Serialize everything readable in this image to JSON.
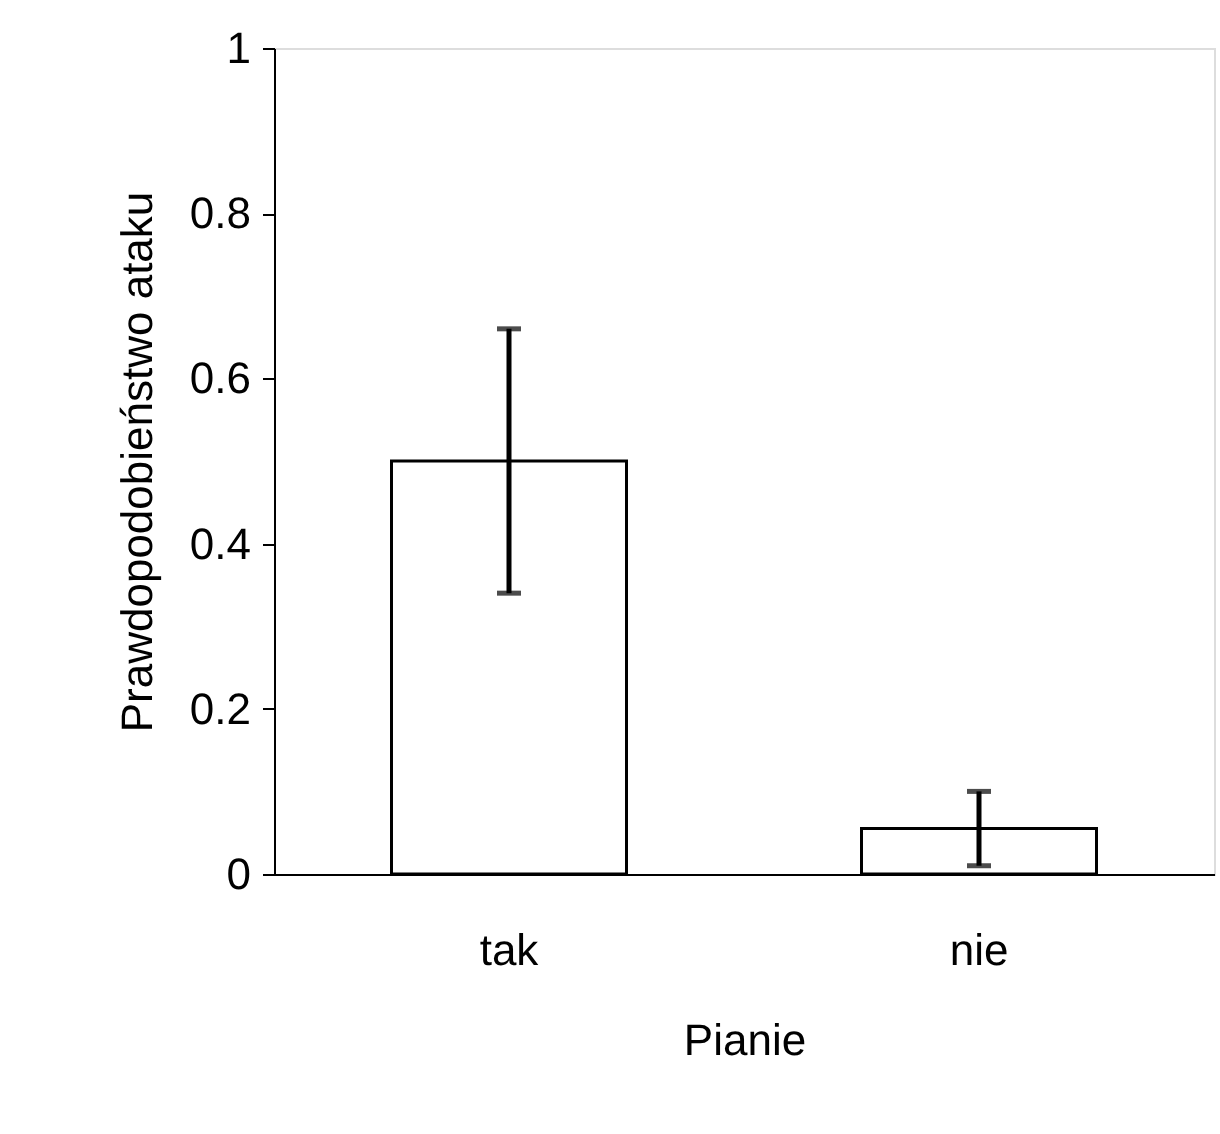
{
  "chart_data": {
    "type": "bar",
    "xlabel": "Pianie",
    "ylabel": "Prawdopodobieństwo ataku",
    "categories": [
      "tak",
      "nie"
    ],
    "values": [
      0.5,
      0.055
    ],
    "errors": [
      [
        0.34,
        0.66
      ],
      [
        0.01,
        0.1
      ]
    ],
    "color": "#ffffff",
    "ylim": [
      0,
      1
    ],
    "yticks": [
      0,
      0.2,
      0.4,
      0.6,
      0.8,
      1
    ],
    "grid": false
  }
}
